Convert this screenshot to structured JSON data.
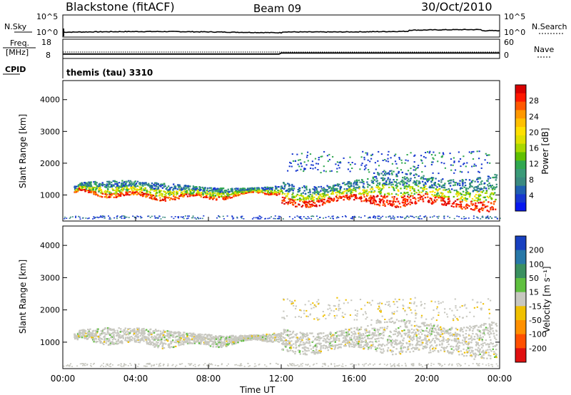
{
  "header": {
    "station": "Blackstone (fitACF)",
    "beam": "Beam 09",
    "date": "30/Oct/2010"
  },
  "top_panels": {
    "nsky_label": "N.Sky",
    "nsearch_label": "N.Search",
    "freq_label_line1": "Freq.",
    "freq_label_line2": "[MHz]",
    "nave_label": "Nave",
    "cpid_label": "CPID",
    "cpid_value": "themis (tau) 3310",
    "noise_ticks_left": [
      "10^5",
      "10^0"
    ],
    "noise_ticks_right": [
      "10^5",
      "10^0"
    ],
    "freq_ticks": [
      "18",
      "8"
    ],
    "nave_ticks": [
      "60",
      "0"
    ],
    "noise_ylim_log10": [
      0,
      5
    ],
    "freq_ylim": [
      8,
      18
    ],
    "nave_ylim": [
      0,
      60
    ]
  },
  "chart_data": [
    {
      "type": "heatmap",
      "parameter": "power",
      "ylabel": "Slant Range [km]",
      "yticks": [
        1000,
        2000,
        3000,
        4000
      ],
      "ylim": [
        180,
        4600
      ],
      "xlim_hours": [
        0,
        24
      ],
      "xticks": [
        "00:00",
        "04:00",
        "08:00",
        "12:00",
        "16:00",
        "20:00",
        "00:00"
      ],
      "colorbar": {
        "label": "Power [dB]",
        "ticks": [
          "28",
          "24",
          "20",
          "16",
          "12",
          "8",
          "4"
        ],
        "colors": [
          "#d80000",
          "#ff1800",
          "#ff5800",
          "#ff9800",
          "#ffc000",
          "#ffe000",
          "#e0e000",
          "#a8d800",
          "#60c000",
          "#30a850",
          "#3a9a78",
          "#3a8a80",
          "#2060b0",
          "#1838d0",
          "#0818f0"
        ]
      }
    },
    {
      "type": "heatmap",
      "parameter": "velocity",
      "ylabel": "Slant Range [km]",
      "yticks": [
        1000,
        2000,
        3000,
        4000
      ],
      "ylim": [
        180,
        4600
      ],
      "xlim_hours": [
        0,
        24
      ],
      "xticks": [
        "00:00",
        "04:00",
        "08:00",
        "12:00",
        "16:00",
        "20:00",
        "00:00"
      ],
      "xlabel": "Time UT",
      "colorbar": {
        "label": "Velocity [m s⁻¹]",
        "ticks": [
          "200",
          "100",
          "50",
          "15",
          "-15",
          "-50",
          "-100",
          "-200"
        ],
        "colors": [
          "#1840c0",
          "#2878a8",
          "#3a9060",
          "#60c040",
          "#c8c8c0",
          "#f0c000",
          "#ff9000",
          "#ff5000",
          "#e01010"
        ]
      }
    }
  ]
}
